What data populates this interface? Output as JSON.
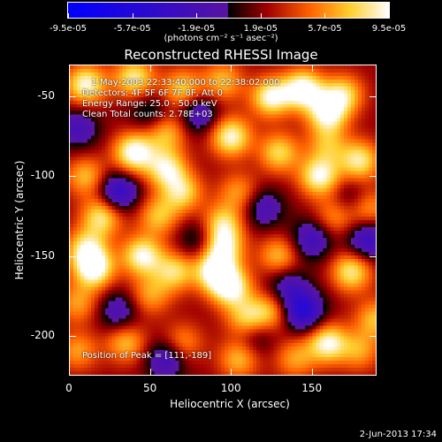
{
  "chart_data": {
    "type": "heatmap",
    "title": "Reconstructed RHESSI Image",
    "xlabel": "Heliocentric X (arcsec)",
    "ylabel": "Heliocentric Y (arcsec)",
    "xlim": [
      0,
      190
    ],
    "ylim": [
      -225,
      -30
    ],
    "xticks": [
      "0",
      "50",
      "100",
      "150"
    ],
    "xtick_values": [
      0,
      50,
      100,
      150
    ],
    "yticks": [
      "-50",
      "-100",
      "-150",
      "-200"
    ],
    "ytick_values": [
      -50,
      -100,
      -150,
      -200
    ],
    "colorbar": {
      "ticks": [
        "-9.5e-05",
        "-5.7e-05",
        "-1.9e-05",
        "1.9e-05",
        "5.7e-05",
        "9.5e-05"
      ],
      "tick_values": [
        -9.5e-05,
        -5.7e-05,
        -1.9e-05,
        1.9e-05,
        5.7e-05,
        9.5e-05
      ],
      "range": [
        -9.5e-05,
        9.5e-05
      ],
      "units": "(photons cm⁻² s⁻¹ asec⁻²)",
      "colormap_colors": [
        "#0000ff",
        "#000000",
        "#a00000",
        "#ff6000",
        "#ffd030",
        "#ffffff"
      ]
    },
    "annotations": {
      "time_range": "1-May-2003 22:33:40.000 to 22:38:02.000",
      "detectors": "Detectors: 4F 5F 6F 7F 8F, Att 0",
      "energy": "Energy Range: 25.0 - 50.0 keV",
      "method": "Clean     Total counts: 2.78E+03",
      "peak": "Position of Peak = [111,-189]"
    },
    "grid": false,
    "blobs": [
      {
        "x": 10,
        "y": -42,
        "v": 0.9
      },
      {
        "x": 40,
        "y": -38,
        "v": 0.8
      },
      {
        "x": 70,
        "y": -45,
        "v": 0.7
      },
      {
        "x": 95,
        "y": -40,
        "v": 0.6
      },
      {
        "x": 125,
        "y": -50,
        "v": 0.9
      },
      {
        "x": 145,
        "y": -45,
        "v": 1.0
      },
      {
        "x": 160,
        "y": -60,
        "v": 0.9
      },
      {
        "x": 170,
        "y": -48,
        "v": 0.7
      },
      {
        "x": 60,
        "y": -72,
        "v": 0.6
      },
      {
        "x": 40,
        "y": -85,
        "v": 1.0
      },
      {
        "x": 100,
        "y": -75,
        "v": 0.9
      },
      {
        "x": 130,
        "y": -85,
        "v": 0.7
      },
      {
        "x": 180,
        "y": -90,
        "v": 0.8
      },
      {
        "x": 160,
        "y": -80,
        "v": 0.5
      },
      {
        "x": 10,
        "y": -100,
        "v": 0.6
      },
      {
        "x": 60,
        "y": -95,
        "v": 0.8
      },
      {
        "x": 155,
        "y": -100,
        "v": 0.9
      },
      {
        "x": 70,
        "y": -110,
        "v": 0.7
      },
      {
        "x": 105,
        "y": -110,
        "v": 0.5
      },
      {
        "x": 20,
        "y": -125,
        "v": 0.8
      },
      {
        "x": 55,
        "y": -125,
        "v": 0.6
      },
      {
        "x": 95,
        "y": -130,
        "v": 0.7
      },
      {
        "x": 185,
        "y": -120,
        "v": 0.6
      },
      {
        "x": 165,
        "y": -125,
        "v": 0.5
      },
      {
        "x": 10,
        "y": -145,
        "v": 0.7
      },
      {
        "x": 15,
        "y": -158,
        "v": 1.0
      },
      {
        "x": 45,
        "y": -150,
        "v": 0.9
      },
      {
        "x": 65,
        "y": -160,
        "v": 0.7
      },
      {
        "x": 95,
        "y": -145,
        "v": 0.8
      },
      {
        "x": 90,
        "y": -160,
        "v": 0.9
      },
      {
        "x": 100,
        "y": -170,
        "v": 0.9
      },
      {
        "x": 130,
        "y": -150,
        "v": 0.6
      },
      {
        "x": 175,
        "y": -160,
        "v": 0.8
      },
      {
        "x": 5,
        "y": -180,
        "v": 0.5
      },
      {
        "x": 50,
        "y": -175,
        "v": 0.5
      },
      {
        "x": 125,
        "y": -185,
        "v": 0.6
      },
      {
        "x": 110,
        "y": -190,
        "v": 0.7
      },
      {
        "x": 160,
        "y": -205,
        "v": 0.9
      },
      {
        "x": 190,
        "y": -190,
        "v": 0.6
      },
      {
        "x": 5,
        "y": -210,
        "v": 0.5
      },
      {
        "x": 35,
        "y": -205,
        "v": 0.6
      },
      {
        "x": 70,
        "y": -205,
        "v": 0.5
      },
      {
        "x": 105,
        "y": -215,
        "v": 0.6
      },
      {
        "x": 140,
        "y": -215,
        "v": 0.5
      },
      {
        "x": 180,
        "y": -210,
        "v": 0.5
      },
      {
        "x": 30,
        "y": -185,
        "v": -0.5
      },
      {
        "x": 145,
        "y": -185,
        "v": -0.9
      },
      {
        "x": 30,
        "y": -110,
        "v": -0.8
      },
      {
        "x": 80,
        "y": -60,
        "v": -0.6
      },
      {
        "x": 120,
        "y": -120,
        "v": -0.5
      },
      {
        "x": 150,
        "y": -140,
        "v": -0.6
      },
      {
        "x": 185,
        "y": -140,
        "v": -0.7
      },
      {
        "x": 60,
        "y": -215,
        "v": -0.6
      },
      {
        "x": 115,
        "y": -200,
        "v": -0.4
      },
      {
        "x": 5,
        "y": -70,
        "v": -0.5
      },
      {
        "x": 175,
        "y": -115,
        "v": -0.4
      },
      {
        "x": 50,
        "y": -60,
        "v": -0.4
      },
      {
        "x": 80,
        "y": -140,
        "v": -0.4
      },
      {
        "x": 135,
        "y": -170,
        "v": -0.5
      }
    ]
  },
  "footer": {
    "timestamp": "2-Jun-2013 17:34"
  }
}
